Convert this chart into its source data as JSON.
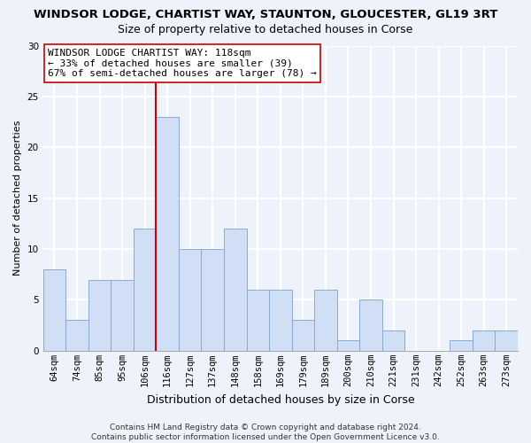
{
  "title": "WINDSOR LODGE, CHARTIST WAY, STAUNTON, GLOUCESTER, GL19 3RT",
  "subtitle": "Size of property relative to detached houses in Corse",
  "xlabel": "Distribution of detached houses by size in Corse",
  "ylabel": "Number of detached properties",
  "bin_labels": [
    "64sqm",
    "74sqm",
    "85sqm",
    "95sqm",
    "106sqm",
    "116sqm",
    "127sqm",
    "137sqm",
    "148sqm",
    "158sqm",
    "169sqm",
    "179sqm",
    "189sqm",
    "200sqm",
    "210sqm",
    "221sqm",
    "231sqm",
    "242sqm",
    "252sqm",
    "263sqm",
    "273sqm"
  ],
  "bar_heights": [
    8,
    3,
    7,
    7,
    12,
    23,
    10,
    10,
    12,
    6,
    6,
    3,
    6,
    1,
    5,
    2,
    0,
    0,
    1,
    2,
    2
  ],
  "bar_color": "#d0dff5",
  "bar_edgecolor": "#8baad0",
  "vline_index": 5,
  "vline_color": "#cc0000",
  "annotation_line1": "WINDSOR LODGE CHARTIST WAY: 118sqm",
  "annotation_line2": "← 33% of detached houses are smaller (39)",
  "annotation_line3": "67% of semi-detached houses are larger (78) →",
  "annotation_box_color": "#ffffff",
  "annotation_box_edge": "#cc0000",
  "ylim": [
    0,
    30
  ],
  "yticks": [
    0,
    5,
    10,
    15,
    20,
    25,
    30
  ],
  "footer_line1": "Contains HM Land Registry data © Crown copyright and database right 2024.",
  "footer_line2": "Contains public sector information licensed under the Open Government Licence v3.0.",
  "background_color": "#eef2fa",
  "grid_color": "#ffffff",
  "title_fontsize": 9.5,
  "subtitle_fontsize": 9,
  "ylabel_fontsize": 8,
  "xlabel_fontsize": 9,
  "annotation_fontsize": 8,
  "tick_fontsize": 7.5,
  "footer_fontsize": 6.5
}
